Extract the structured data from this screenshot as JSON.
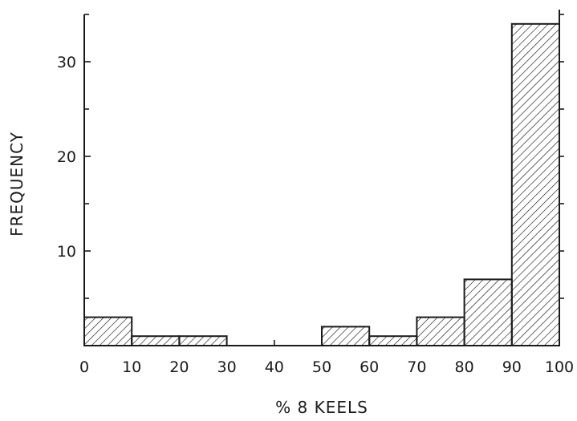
{
  "chart_data": {
    "type": "bar",
    "title": "",
    "xlabel": "% 8 KEELS",
    "ylabel": "FREQUENCY",
    "bin_edges": [
      0,
      10,
      20,
      30,
      40,
      50,
      60,
      70,
      80,
      90,
      100
    ],
    "categories": [
      "0-10",
      "10-20",
      "20-30",
      "30-40",
      "40-50",
      "50-60",
      "60-70",
      "70-80",
      "80-90",
      "90-100"
    ],
    "values": [
      3,
      1,
      1,
      0,
      0,
      2,
      1,
      3,
      7,
      34
    ],
    "xlim": [
      0,
      100
    ],
    "ylim": [
      0,
      35
    ],
    "xticks": [
      0,
      10,
      20,
      30,
      40,
      50,
      60,
      70,
      80,
      90,
      100
    ],
    "yticks_labeled": [
      10,
      20,
      30
    ],
    "yticks_minor": [
      5,
      15,
      25,
      35
    ],
    "fill": "diagonal-hatch",
    "grid": false,
    "legend": "none",
    "colors": {
      "ink": "#1a1a1a",
      "background": "#ffffff"
    }
  }
}
